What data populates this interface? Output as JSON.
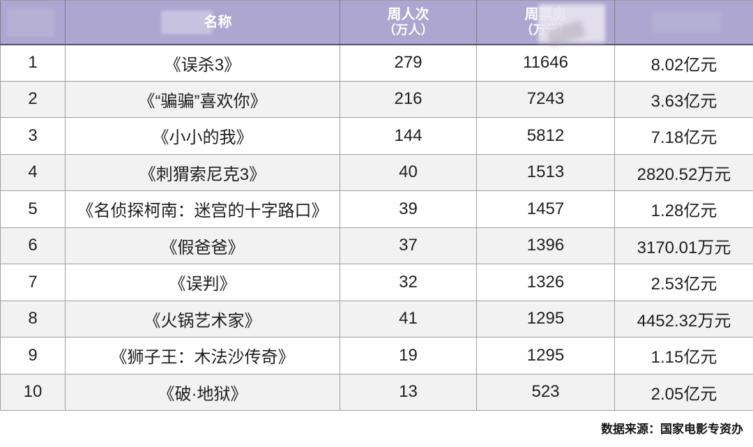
{
  "table": {
    "columns": [
      {
        "label": "",
        "sub": ""
      },
      {
        "label": "名称",
        "sub": ""
      },
      {
        "label": "周人次",
        "sub": "（万人）"
      },
      {
        "label": "周票房",
        "sub": "（万元）"
      },
      {
        "label": "",
        "sub": ""
      }
    ],
    "rows": [
      {
        "rank": "1",
        "title": "《误杀3》",
        "weekly_audience": "279",
        "weekly_boxoffice": "11646",
        "total_boxoffice": "8.02亿元"
      },
      {
        "rank": "2",
        "title": "《“骗骗”喜欢你》",
        "weekly_audience": "216",
        "weekly_boxoffice": "7243",
        "total_boxoffice": "3.63亿元"
      },
      {
        "rank": "3",
        "title": "《小小的我》",
        "weekly_audience": "144",
        "weekly_boxoffice": "5812",
        "total_boxoffice": "7.18亿元"
      },
      {
        "rank": "4",
        "title": "《刺猬索尼克3》",
        "weekly_audience": "40",
        "weekly_boxoffice": "1513",
        "total_boxoffice": "2820.52万元"
      },
      {
        "rank": "5",
        "title": "《名侦探柯南：迷宫的十字路口》",
        "weekly_audience": "39",
        "weekly_boxoffice": "1457",
        "total_boxoffice": "1.28亿元"
      },
      {
        "rank": "6",
        "title": "《假爸爸》",
        "weekly_audience": "37",
        "weekly_boxoffice": "1396",
        "total_boxoffice": "3170.01万元"
      },
      {
        "rank": "7",
        "title": "《误判》",
        "weekly_audience": "32",
        "weekly_boxoffice": "1326",
        "total_boxoffice": "2.53亿元"
      },
      {
        "rank": "8",
        "title": "《火锅艺术家》",
        "weekly_audience": "41",
        "weekly_boxoffice": "1295",
        "total_boxoffice": "4452.32万元"
      },
      {
        "rank": "9",
        "title": "《狮子王：木法沙传奇》",
        "weekly_audience": "19",
        "weekly_boxoffice": "1295",
        "total_boxoffice": "1.15亿元"
      },
      {
        "rank": "10",
        "title": "《破·地狱》",
        "weekly_audience": "13",
        "weekly_boxoffice": "523",
        "total_boxoffice": "2.05亿元"
      }
    ]
  },
  "footer": {
    "source": "数据来源：国家电影专资办"
  },
  "colors": {
    "header_bg": "#aca6d0",
    "row_alt_bg": "#f2f2f2",
    "row_bg": "#ffffff",
    "border": "#9e9e9e",
    "body_text": "#1e1e1e",
    "header_text": "#ffffff"
  },
  "chart_data": {
    "type": "table",
    "title": "",
    "columns": [
      "",
      "名称",
      "周人次（万人）",
      "周票房（万元）",
      ""
    ],
    "rows": [
      [
        1,
        "《误杀3》",
        279,
        11646,
        "8.02亿元"
      ],
      [
        2,
        "《“骗骗”喜欢你》",
        216,
        7243,
        "3.63亿元"
      ],
      [
        3,
        "《小小的我》",
        144,
        5812,
        "7.18亿元"
      ],
      [
        4,
        "《刺猬索尼克3》",
        40,
        1513,
        "2820.52万元"
      ],
      [
        5,
        "《名侦探柯南：迷宫的十字路口》",
        39,
        1457,
        "1.28亿元"
      ],
      [
        6,
        "《假爸爸》",
        37,
        1396,
        "3170.01万元"
      ],
      [
        7,
        "《误判》",
        32,
        1326,
        "2.53亿元"
      ],
      [
        8,
        "《火锅艺术家》",
        41,
        1295,
        "4452.32万元"
      ],
      [
        9,
        "《狮子王：木法沙传奇》",
        19,
        1295,
        "1.15亿元"
      ],
      [
        10,
        "《破·地狱》",
        13,
        523,
        "2.05亿元"
      ]
    ],
    "notes": "数据来源：国家电影专资办"
  }
}
